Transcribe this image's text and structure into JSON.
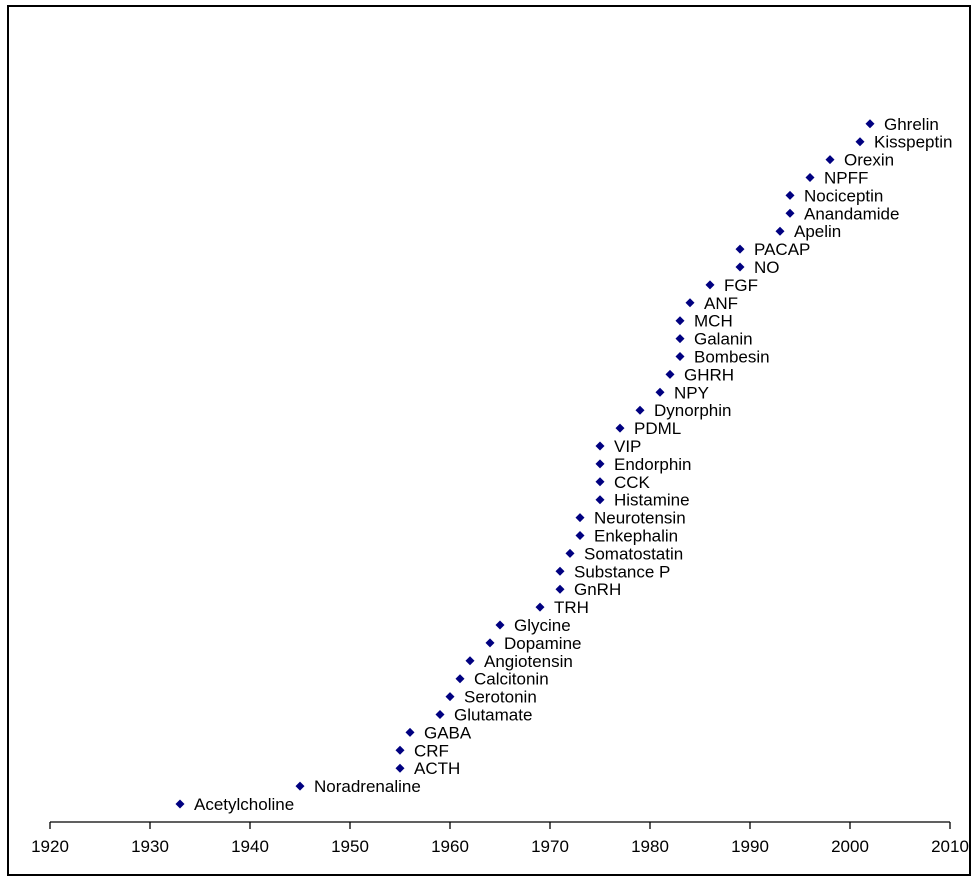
{
  "chart_data": {
    "type": "scatter",
    "title": "",
    "xlabel": "",
    "ylabel": "",
    "xlim": [
      1920,
      2010
    ],
    "xticks": [
      1920,
      1930,
      1940,
      1950,
      1960,
      1970,
      1980,
      1990,
      2000,
      2010
    ],
    "grid": false,
    "legend": "none",
    "marker_color": "#000080",
    "points": [
      {
        "label": "Acetylcholine",
        "year": 1933
      },
      {
        "label": "Noradrenaline",
        "year": 1945
      },
      {
        "label": "ACTH",
        "year": 1955
      },
      {
        "label": "CRF",
        "year": 1955
      },
      {
        "label": "GABA",
        "year": 1956
      },
      {
        "label": "Glutamate",
        "year": 1959
      },
      {
        "label": "Serotonin",
        "year": 1960
      },
      {
        "label": "Calcitonin",
        "year": 1961
      },
      {
        "label": "Angiotensin",
        "year": 1962
      },
      {
        "label": "Dopamine",
        "year": 1964
      },
      {
        "label": "Glycine",
        "year": 1965
      },
      {
        "label": "TRH",
        "year": 1969
      },
      {
        "label": "GnRH",
        "year": 1971
      },
      {
        "label": "Substance P",
        "year": 1971
      },
      {
        "label": "Somatostatin",
        "year": 1972
      },
      {
        "label": "Enkephalin",
        "year": 1973
      },
      {
        "label": "Neurotensin",
        "year": 1973
      },
      {
        "label": "Histamine",
        "year": 1975
      },
      {
        "label": "CCK",
        "year": 1975
      },
      {
        "label": "Endorphin",
        "year": 1975
      },
      {
        "label": "VIP",
        "year": 1975
      },
      {
        "label": "PDML",
        "year": 1977
      },
      {
        "label": "Dynorphin",
        "year": 1979
      },
      {
        "label": "NPY",
        "year": 1981
      },
      {
        "label": "GHRH",
        "year": 1982
      },
      {
        "label": "Bombesin",
        "year": 1983
      },
      {
        "label": "Galanin",
        "year": 1983
      },
      {
        "label": "MCH",
        "year": 1983
      },
      {
        "label": "ANF",
        "year": 1984
      },
      {
        "label": "FGF",
        "year": 1986
      },
      {
        "label": "NO",
        "year": 1989
      },
      {
        "label": "PACAP",
        "year": 1989
      },
      {
        "label": "Apelin",
        "year": 1993
      },
      {
        "label": "Anandamide",
        "year": 1994
      },
      {
        "label": "Nociceptin",
        "year": 1994
      },
      {
        "label": "NPFF",
        "year": 1996
      },
      {
        "label": "Orexin",
        "year": 1998
      },
      {
        "label": "Kisspeptin",
        "year": 2001
      },
      {
        "label": "Ghrelin",
        "year": 2002
      }
    ]
  }
}
